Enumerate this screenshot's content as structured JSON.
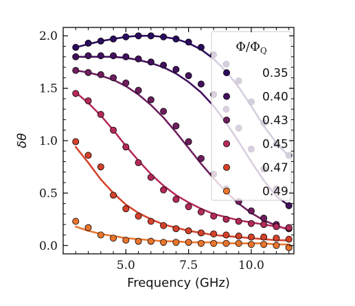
{
  "chart_data": {
    "type": "scatter",
    "xlabel": "Frequency (GHz)",
    "ylabel": "δθ",
    "xlim": [
      2.5,
      11.7
    ],
    "ylim": [
      -0.08,
      2.08
    ],
    "xticks": [
      5.0,
      7.5,
      10.0
    ],
    "xtick_labels": [
      "5.0",
      "7.5",
      "10.0"
    ],
    "yticks": [
      0.0,
      0.5,
      1.0,
      1.5,
      2.0
    ],
    "ytick_labels": [
      "0.0",
      "0.5",
      "1.0",
      "1.5",
      "2.0"
    ],
    "grid": false,
    "legend": {
      "title": "Φ/Φ_Q",
      "title_main": "Φ/Φ",
      "title_sub": "Q",
      "placement": "top-right"
    },
    "x": [
      3.0,
      3.5,
      4.0,
      4.5,
      5.0,
      5.5,
      6.0,
      6.5,
      7.0,
      7.5,
      8.0,
      8.5,
      9.0,
      9.5,
      10.0,
      10.5,
      11.0,
      11.5
    ],
    "series": [
      {
        "name": "0.35",
        "color": "#2b0b5e",
        "marker_values": [
          1.89,
          1.93,
          1.95,
          1.97,
          1.99,
          2.0,
          2.0,
          1.99,
          1.97,
          1.94,
          1.89,
          1.82,
          1.73,
          1.57,
          1.37,
          1.17,
          0.97,
          0.86
        ],
        "fit_values": [
          1.89,
          1.92,
          1.95,
          1.97,
          1.99,
          2.0,
          2.0,
          1.99,
          1.97,
          1.93,
          1.87,
          1.78,
          1.66,
          1.51,
          1.33,
          1.14,
          0.98,
          0.85
        ]
      },
      {
        "name": "0.40",
        "color": "#42105e",
        "marker_values": [
          1.8,
          1.81,
          1.81,
          1.81,
          1.8,
          1.78,
          1.75,
          1.72,
          1.68,
          1.62,
          1.54,
          1.44,
          1.3,
          1.12,
          0.92,
          0.73,
          0.54,
          0.38
        ],
        "fit_values": [
          1.8,
          1.8,
          1.8,
          1.8,
          1.79,
          1.77,
          1.74,
          1.7,
          1.64,
          1.56,
          1.46,
          1.33,
          1.17,
          0.99,
          0.8,
          0.62,
          0.47,
          0.38
        ]
      },
      {
        "name": "0.43",
        "color": "#6e1e5e",
        "marker_values": [
          1.67,
          1.65,
          1.63,
          1.6,
          1.55,
          1.48,
          1.39,
          1.28,
          1.14,
          0.99,
          0.83,
          0.68,
          0.54,
          0.42,
          0.33,
          0.26,
          0.2,
          0.16
        ],
        "fit_values": [
          1.67,
          1.65,
          1.62,
          1.58,
          1.52,
          1.44,
          1.34,
          1.22,
          1.08,
          0.93,
          0.78,
          0.64,
          0.51,
          0.4,
          0.31,
          0.24,
          0.19,
          0.15
        ]
      },
      {
        "name": "0.45",
        "color": "#b32a5a",
        "marker_values": [
          1.45,
          1.38,
          1.25,
          1.1,
          0.94,
          0.79,
          0.65,
          0.53,
          0.44,
          0.37,
          0.32,
          0.28,
          0.25,
          0.23,
          0.21,
          0.2,
          0.18,
          0.17
        ],
        "fit_values": [
          1.46,
          1.36,
          1.24,
          1.1,
          0.95,
          0.81,
          0.68,
          0.57,
          0.48,
          0.41,
          0.35,
          0.3,
          0.27,
          0.24,
          0.22,
          0.2,
          0.18,
          0.16
        ]
      },
      {
        "name": "0.47",
        "color": "#d4422b",
        "marker_values": [
          0.99,
          0.86,
          0.75,
          0.48,
          0.35,
          0.28,
          0.23,
          0.19,
          0.16,
          0.14,
          0.12,
          0.11,
          0.1,
          0.09,
          0.08,
          0.08,
          0.07,
          0.06
        ],
        "fit_values": [
          0.94,
          0.79,
          0.63,
          0.5,
          0.39,
          0.31,
          0.25,
          0.2,
          0.17,
          0.14,
          0.12,
          0.1,
          0.09,
          0.08,
          0.07,
          0.06,
          0.05,
          0.05
        ]
      },
      {
        "name": "0.49",
        "color": "#e8752e",
        "marker_values": [
          0.23,
          0.17,
          0.1,
          0.07,
          0.05,
          0.04,
          0.04,
          0.03,
          0.03,
          0.03,
          0.02,
          0.02,
          0.02,
          0.02,
          0.01,
          0.01,
          0.0,
          -0.02
        ],
        "fit_values": [
          0.18,
          0.14,
          0.11,
          0.09,
          0.07,
          0.06,
          0.05,
          0.04,
          0.04,
          0.03,
          0.03,
          0.03,
          0.02,
          0.02,
          0.02,
          0.02,
          0.01,
          0.01
        ]
      }
    ]
  }
}
